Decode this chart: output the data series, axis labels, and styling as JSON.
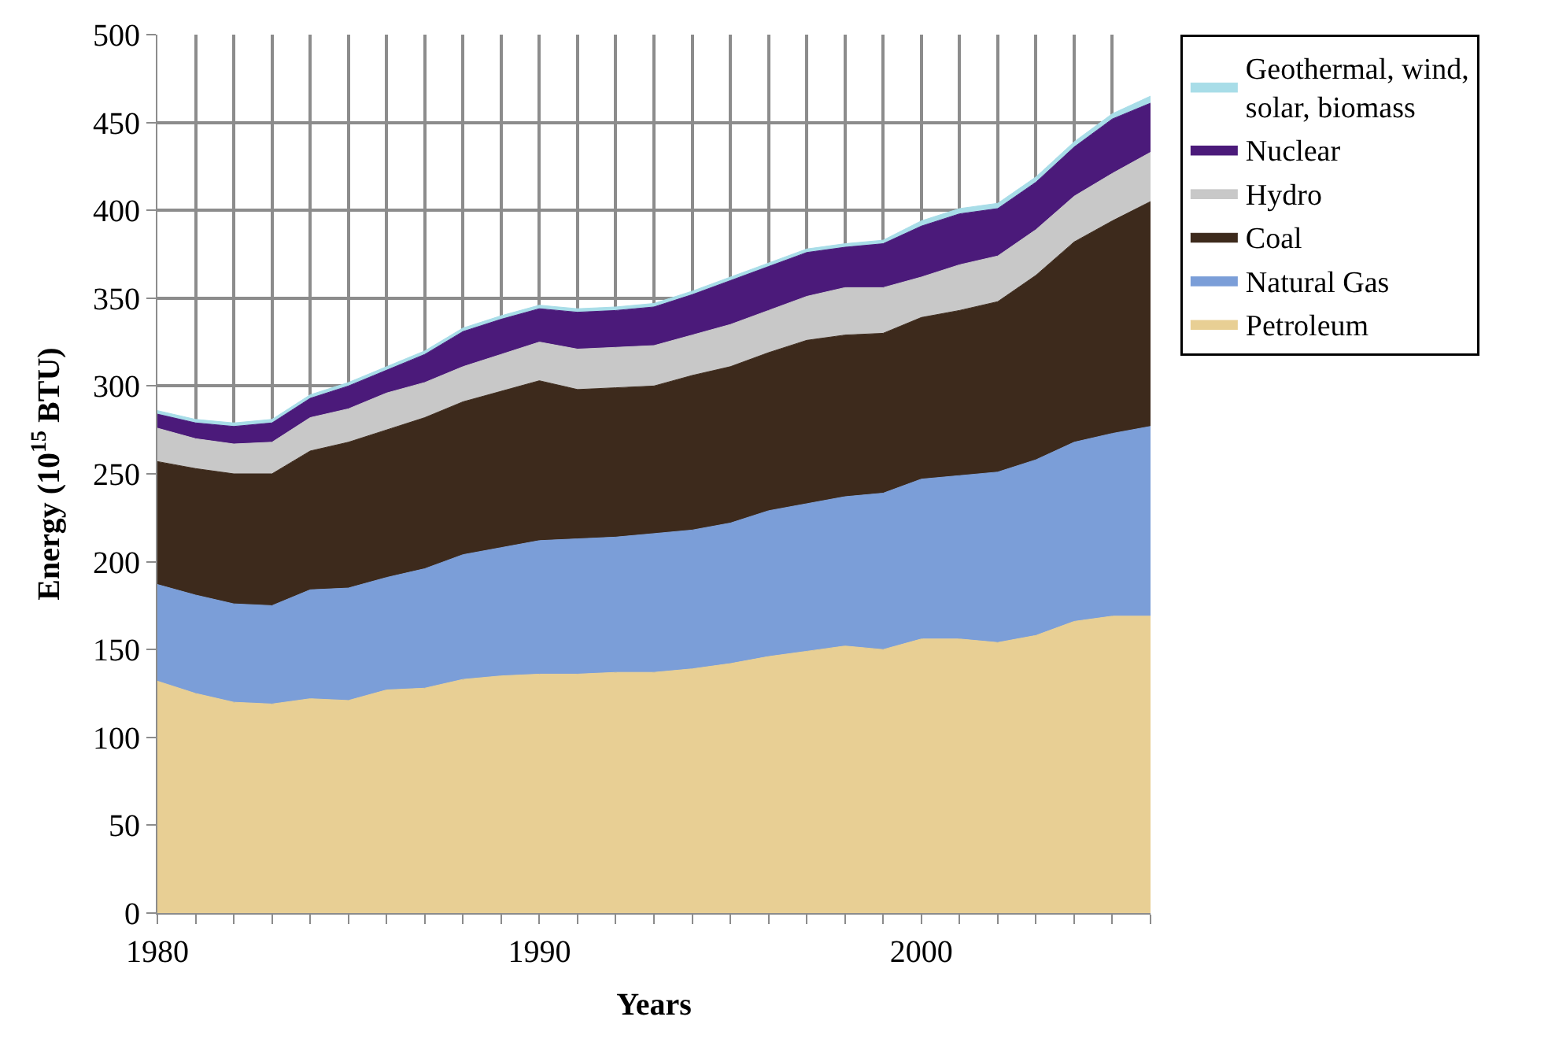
{
  "chart_data": {
    "type": "area",
    "stacked": true,
    "xlabel": "Years",
    "ylabel": "Energy (10$^{15}$ BTU)",
    "x": [
      1980,
      1981,
      1982,
      1983,
      1984,
      1985,
      1986,
      1987,
      1988,
      1989,
      1990,
      1991,
      1992,
      1993,
      1994,
      1995,
      1996,
      1997,
      1998,
      1999,
      2000,
      2001,
      2002,
      2003,
      2004,
      2005,
      2006
    ],
    "series": [
      {
        "name": "Petroleum",
        "color": "#e8cf94",
        "values": [
          132,
          125,
          120,
          119,
          122,
          121,
          127,
          128,
          133,
          135,
          136,
          136,
          137,
          137,
          139,
          142,
          146,
          149,
          152,
          150,
          156,
          156,
          154,
          158,
          166,
          169,
          169
        ]
      },
      {
        "name": "Natural Gas",
        "color": "#7b9ed8",
        "values": [
          55,
          56,
          56,
          56,
          62,
          64,
          64,
          68,
          71,
          73,
          76,
          77,
          77,
          79,
          79,
          80,
          83,
          84,
          85,
          89,
          91,
          93,
          97,
          100,
          102,
          104,
          108
        ]
      },
      {
        "name": "Coal",
        "color": "#3d2a1c",
        "values": [
          70,
          72,
          74,
          75,
          79,
          83,
          84,
          86,
          87,
          89,
          91,
          85,
          85,
          84,
          88,
          89,
          90,
          93,
          92,
          91,
          92,
          94,
          97,
          105,
          114,
          121,
          128
        ]
      },
      {
        "name": "Hydro",
        "color": "#c8c8c8",
        "values": [
          19,
          17,
          17,
          18,
          19,
          19,
          21,
          20,
          20,
          21,
          22,
          23,
          23,
          23,
          23,
          24,
          24,
          25,
          27,
          26,
          23,
          26,
          26,
          26,
          26,
          27,
          28
        ]
      },
      {
        "name": "Nuclear",
        "color": "#4b1a7a",
        "values": [
          8,
          9,
          10,
          11,
          11,
          13,
          13,
          16,
          20,
          20,
          19,
          21,
          21,
          22,
          23,
          25,
          25,
          25,
          23,
          25,
          29,
          29,
          27,
          27,
          28,
          31,
          28
        ]
      },
      {
        "name": "Geothermal, wind, solar, biomass",
        "color": "#a8dde8",
        "values": [
          2,
          2,
          2,
          2,
          2,
          2,
          2,
          2,
          2,
          2,
          2,
          2,
          2,
          2,
          2,
          2,
          2,
          2,
          2,
          2,
          3,
          3,
          3,
          3,
          3,
          3,
          4
        ]
      }
    ],
    "xlim": [
      1980,
      2006
    ],
    "ylim": [
      0,
      500
    ],
    "xticks": [
      1980,
      {
        "value": 1981,
        "label": null
      },
      {
        "value": 1982,
        "label": null
      },
      {
        "value": 1983,
        "label": null
      },
      {
        "value": 1984,
        "label": null
      },
      {
        "value": 1985,
        "label": null
      },
      {
        "value": 1986,
        "label": null
      },
      {
        "value": 1987,
        "label": null
      },
      {
        "value": 1988,
        "label": null
      },
      {
        "value": 1989,
        "label": null
      },
      1990,
      {
        "value": 1991,
        "label": null
      },
      {
        "value": 1992,
        "label": null
      },
      {
        "value": 1993,
        "label": null
      },
      {
        "value": 1994,
        "label": null
      },
      {
        "value": 1995,
        "label": null
      },
      {
        "value": 1996,
        "label": null
      },
      {
        "value": 1997,
        "label": null
      },
      {
        "value": 1998,
        "label": null
      },
      {
        "value": 1999,
        "label": null
      },
      2000,
      {
        "value": 2001,
        "label": null
      },
      {
        "value": 2002,
        "label": null
      },
      {
        "value": 2003,
        "label": null
      },
      {
        "value": 2004,
        "label": null
      },
      {
        "value": 2005,
        "label": null
      },
      {
        "value": 2006,
        "label": null
      }
    ],
    "yticks": [
      0,
      50,
      100,
      150,
      200,
      250,
      300,
      350,
      400,
      450,
      500
    ],
    "grid": true,
    "legend": "right"
  }
}
